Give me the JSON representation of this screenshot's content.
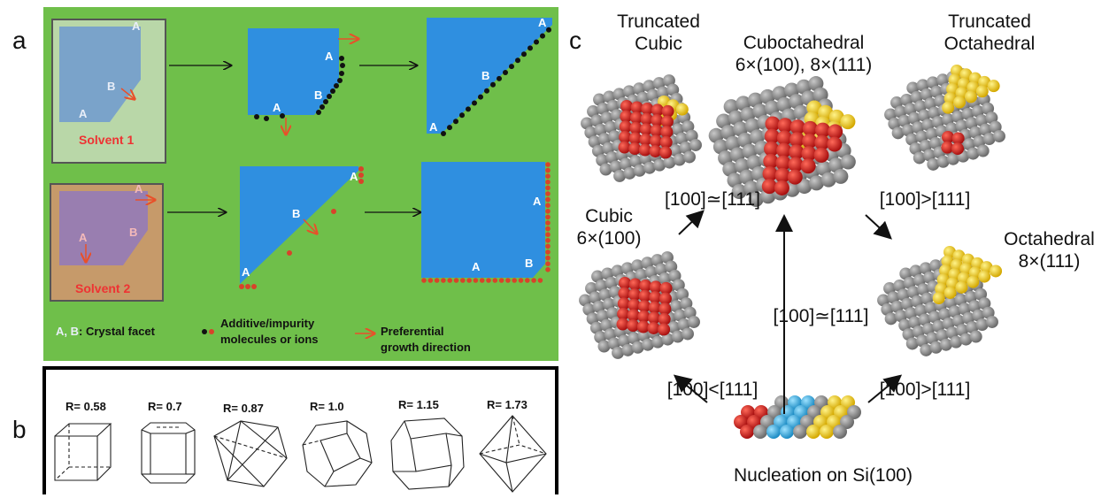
{
  "panel_labels": {
    "a": "a",
    "b": "b",
    "c": "c"
  },
  "panel_a": {
    "solvent1": "Solvent 1",
    "solvent2": "Solvent 2",
    "facet_a": "A",
    "facet_b": "B",
    "legend": {
      "facet_letters": "A, B",
      "facet_text": ": Crystal facet",
      "additive_line1": "Additive/impurity",
      "additive_line2": "molecules or ions",
      "growth_line1": "Preferential",
      "growth_line2": "growth direction"
    },
    "colors": {
      "background": "#6fbf4a",
      "crystal": "#2f8fe0",
      "arrow": "#e8502a",
      "molecule_red": "#d8432a",
      "molecule_black": "#111111"
    }
  },
  "panel_b": {
    "ratios": [
      "R= 0.58",
      "R= 0.7",
      "R= 0.87",
      "R= 1.0",
      "R= 1.15",
      "R= 1.73"
    ]
  },
  "panel_c": {
    "truncated_cubic": [
      "Truncated",
      "Cubic"
    ],
    "cuboctahedral": [
      "Cuboctahedral",
      "6×(100), 8×(111)"
    ],
    "truncated_octahedral": [
      "Truncated",
      "Octahedral"
    ],
    "cubic": [
      "Cubic",
      "6×(100)"
    ],
    "octahedral": [
      "Octahedral",
      "8×(111)"
    ],
    "rel_left_upper": "[100]≃[111]",
    "rel_right_upper": "[100]>[111]",
    "rel_center": "[100]≃[111]",
    "rel_left_lower": "[100]<[111]",
    "rel_right_lower": "[100]>[111]",
    "nucleation": "Nucleation on Si(100)",
    "colors": {
      "atom_grey": "#8a8a8a",
      "atom_red": "#d42020",
      "atom_yellow": "#f2d21e",
      "atom_blue": "#3fb4e6"
    }
  }
}
